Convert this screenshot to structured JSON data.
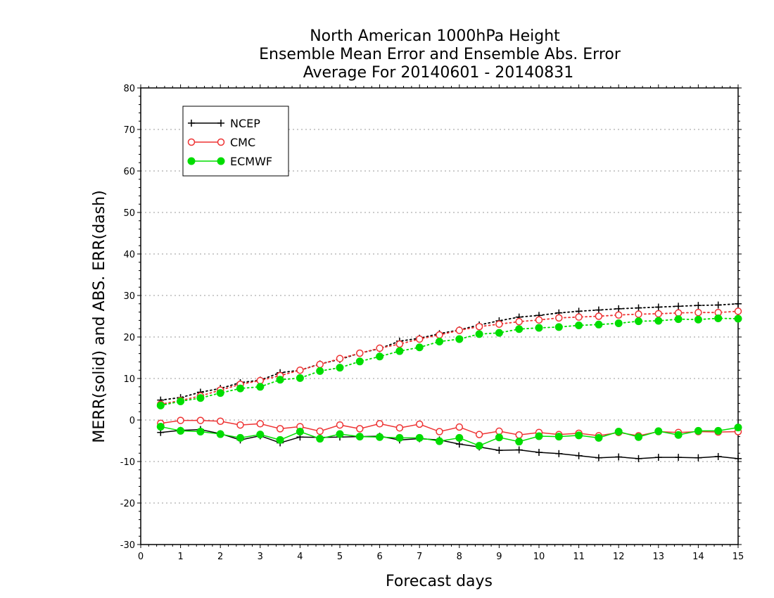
{
  "chart_data": {
    "type": "line",
    "title_lines": [
      "North American 1000hPa Height",
      "Ensemble Mean Error and Ensemble Abs. Error",
      "Average For 20140601 - 20140831"
    ],
    "xlabel": "Forecast days",
    "ylabel": "MERR(solid) and ABS. ERR(dash)",
    "xlim": [
      0,
      15
    ],
    "ylim": [
      -30,
      80
    ],
    "x_ticks": [
      "0",
      "1",
      "2",
      "3",
      "4",
      "5",
      "6",
      "7",
      "8",
      "9",
      "10",
      "11",
      "12",
      "13",
      "14",
      "15"
    ],
    "y_ticks": [
      "80",
      "70",
      "60",
      "50",
      "40",
      "30",
      "20",
      "10",
      "0",
      "-10",
      "-20",
      "-30"
    ],
    "grid": "horizontal dotted",
    "legend_position": "top-left",
    "x": [
      0.5,
      1,
      1.5,
      2,
      2.5,
      3,
      3.5,
      4,
      4.5,
      5,
      5.5,
      6,
      6.5,
      7,
      7.5,
      8,
      8.5,
      9,
      9.5,
      10,
      10.5,
      11,
      11.5,
      12,
      12.5,
      13,
      13.5,
      14,
      14.5,
      15
    ],
    "series": [
      {
        "name": "NCEP",
        "color": "#000000",
        "marker": "plus",
        "merr": [
          -3.0,
          -2.5,
          -2.3,
          -3.3,
          -4.8,
          -3.8,
          -5.5,
          -4.1,
          -4.2,
          -4.1,
          -4.0,
          -3.9,
          -4.8,
          -4.5,
          -4.8,
          -5.8,
          -6.5,
          -7.3,
          -7.2,
          -7.8,
          -8.1,
          -8.6,
          -9.1,
          -8.9,
          -9.3,
          -9.0,
          -9.0,
          -9.1,
          -8.8,
          -9.3
        ],
        "abs_err": [
          4.8,
          5.4,
          6.7,
          7.6,
          9.0,
          9.6,
          11.4,
          12.0,
          13.5,
          14.6,
          16.1,
          17.2,
          19.0,
          19.7,
          20.8,
          21.7,
          22.9,
          23.9,
          24.8,
          25.2,
          25.8,
          26.2,
          26.5,
          26.8,
          27.0,
          27.2,
          27.4,
          27.6,
          27.7,
          28.0
        ]
      },
      {
        "name": "CMC",
        "color": "#ee3333",
        "marker": "open-circle",
        "merr": [
          -0.8,
          -0.1,
          -0.1,
          -0.3,
          -1.2,
          -0.9,
          -2.1,
          -1.6,
          -2.7,
          -1.2,
          -2.1,
          -0.9,
          -1.9,
          -1.0,
          -2.8,
          -1.7,
          -3.5,
          -2.7,
          -3.6,
          -3.0,
          -3.5,
          -3.2,
          -3.8,
          -3.0,
          -3.8,
          -2.8,
          -3.0,
          -2.8,
          -2.9,
          -2.8
        ],
        "abs_err": [
          3.8,
          4.7,
          5.8,
          7.2,
          8.6,
          9.5,
          10.7,
          12.0,
          13.4,
          14.8,
          16.1,
          17.3,
          18.3,
          19.5,
          20.5,
          21.6,
          22.5,
          23.1,
          23.7,
          24.1,
          24.6,
          24.8,
          25.0,
          25.3,
          25.5,
          25.6,
          25.8,
          25.9,
          25.9,
          26.2
        ]
      },
      {
        "name": "ECMWF",
        "color": "#00dd00",
        "marker": "filled-circle",
        "merr": [
          -1.6,
          -2.6,
          -2.8,
          -3.4,
          -4.3,
          -3.5,
          -4.8,
          -2.8,
          -4.5,
          -3.4,
          -4.0,
          -4.1,
          -4.3,
          -4.3,
          -5.1,
          -4.3,
          -6.2,
          -4.2,
          -5.2,
          -3.9,
          -4.0,
          -3.7,
          -4.3,
          -2.8,
          -4.1,
          -2.7,
          -3.6,
          -2.6,
          -2.6,
          -1.8
        ],
        "abs_err": [
          3.5,
          4.5,
          5.3,
          6.5,
          7.6,
          8.0,
          9.7,
          10.1,
          11.8,
          12.6,
          14.1,
          15.3,
          16.6,
          17.5,
          18.9,
          19.5,
          20.7,
          21.0,
          21.9,
          22.2,
          22.4,
          22.8,
          23.0,
          23.3,
          23.8,
          23.9,
          24.3,
          24.2,
          24.5,
          24.4
        ]
      }
    ]
  }
}
